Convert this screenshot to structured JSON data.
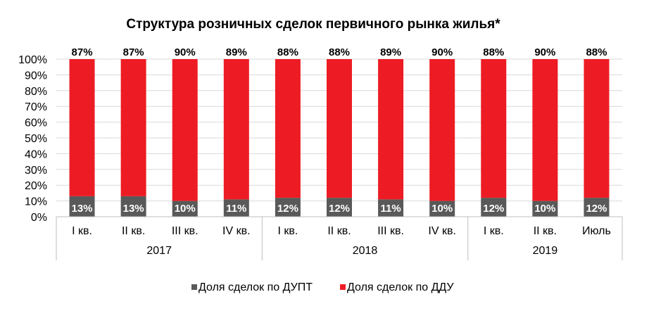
{
  "chart_data": {
    "type": "bar",
    "stacked": true,
    "title": "Структура розничных сделок первичного рынка жилья*",
    "xlabel": "",
    "ylabel": "",
    "ylim": [
      0,
      100
    ],
    "y_ticks": [
      "0%",
      "10%",
      "20%",
      "30%",
      "40%",
      "50%",
      "60%",
      "70%",
      "80%",
      "90%",
      "100%"
    ],
    "grid": true,
    "legend_position": "bottom",
    "categories": [
      "I кв.",
      "II кв.",
      "III кв.",
      "IV кв.",
      "I кв.",
      "II кв.",
      "III кв.",
      "IV кв.",
      "I кв.",
      "II кв.",
      "Июль"
    ],
    "groups": [
      {
        "label": "2017",
        "count": 4
      },
      {
        "label": "2018",
        "count": 4
      },
      {
        "label": "2019",
        "count": 3
      }
    ],
    "series": [
      {
        "name": "Доля сделок по ДУПТ",
        "color": "#595959",
        "values": [
          13,
          13,
          10,
          11,
          12,
          12,
          11,
          10,
          12,
          10,
          12
        ],
        "labels": [
          "13%",
          "13%",
          "10%",
          "11%",
          "12%",
          "12%",
          "11%",
          "10%",
          "12%",
          "10%",
          "12%"
        ]
      },
      {
        "name": "Доля сделок по ДДУ",
        "color": "#ed1c24",
        "values": [
          87,
          87,
          90,
          89,
          88,
          88,
          89,
          90,
          88,
          90,
          88
        ],
        "labels": [
          "87%",
          "87%",
          "90%",
          "89%",
          "88%",
          "88%",
          "89%",
          "90%",
          "88%",
          "90%",
          "88%"
        ]
      }
    ]
  }
}
